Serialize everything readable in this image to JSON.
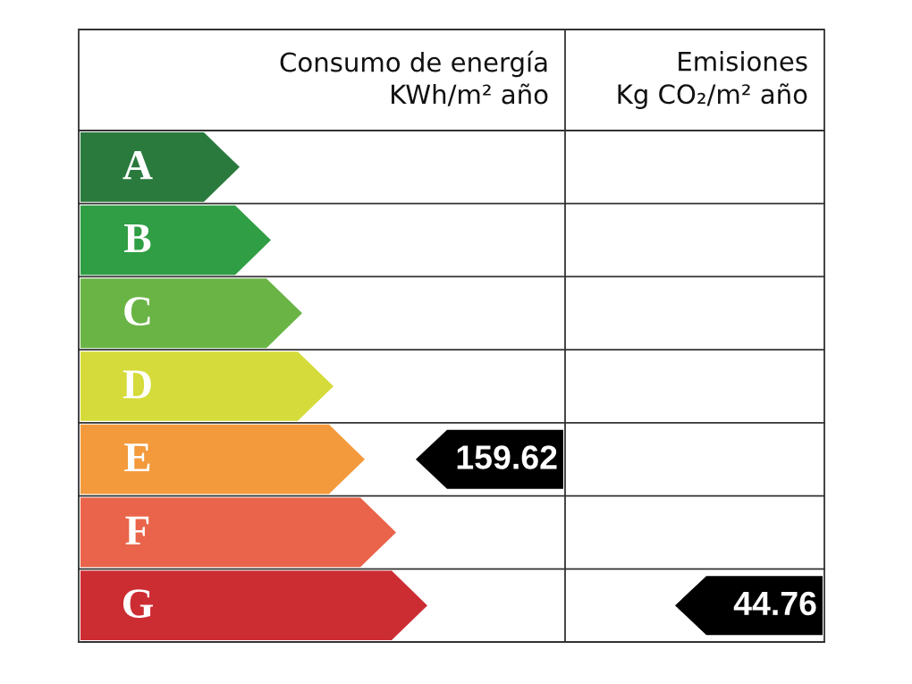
{
  "chart_data": {
    "type": "other",
    "categories": [
      "A",
      "B",
      "C",
      "D",
      "E",
      "F",
      "G"
    ],
    "colors": [
      "#2a7a3e",
      "#2f9e44",
      "#6ab446",
      "#d5db3a",
      "#f39a3c",
      "#e9644a",
      "#cc2d33"
    ],
    "series": [
      {
        "color": "#000000",
        "values": [
          null,
          null,
          null,
          null,
          159.62,
          null,
          null
        ]
      },
      {
        "color": "#000000",
        "values": [
          null,
          null,
          null,
          null,
          null,
          null,
          44.76
        ]
      }
    ],
    "annotations": [
      "Consumo de energía\nKWh/m² año",
      "Emisiones\nKg CO₂/m² año"
    ],
    "data_labels": true
  }
}
